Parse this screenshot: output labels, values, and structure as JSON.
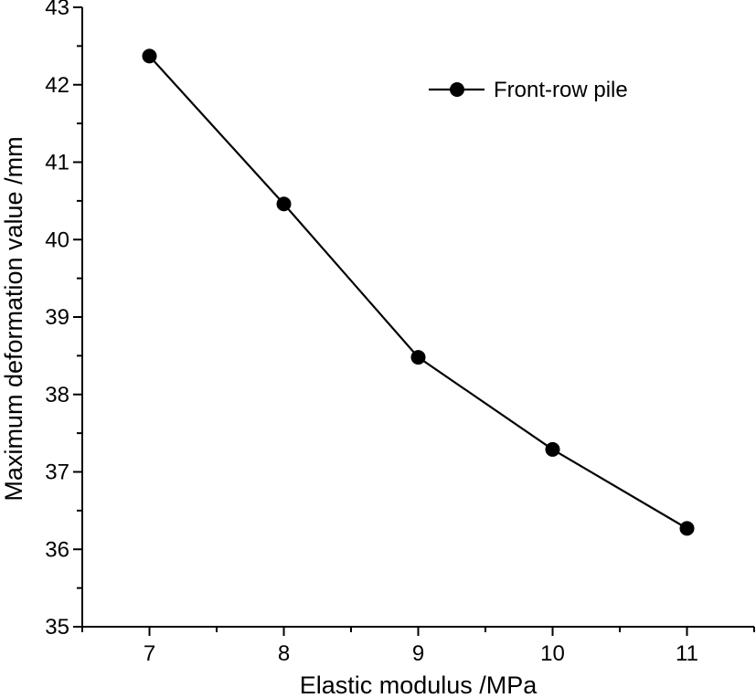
{
  "chart_data": {
    "type": "line",
    "title": "",
    "xlabel": "Elastic modulus /MPa",
    "ylabel": "Maximum deformation value /mm",
    "xlim": [
      6.5,
      11.5
    ],
    "ylim": [
      35,
      43
    ],
    "xticks": [
      7,
      8,
      9,
      10,
      11
    ],
    "yticks": [
      35,
      36,
      37,
      38,
      39,
      40,
      41,
      42,
      43
    ],
    "x": [
      7,
      8,
      9,
      10,
      11
    ],
    "series": [
      {
        "name": "Front-row pile",
        "values": [
          42.37,
          40.46,
          38.48,
          37.29,
          36.27
        ],
        "color": "#000000",
        "marker": "circle"
      }
    ],
    "grid": false,
    "legend": "top-right"
  }
}
